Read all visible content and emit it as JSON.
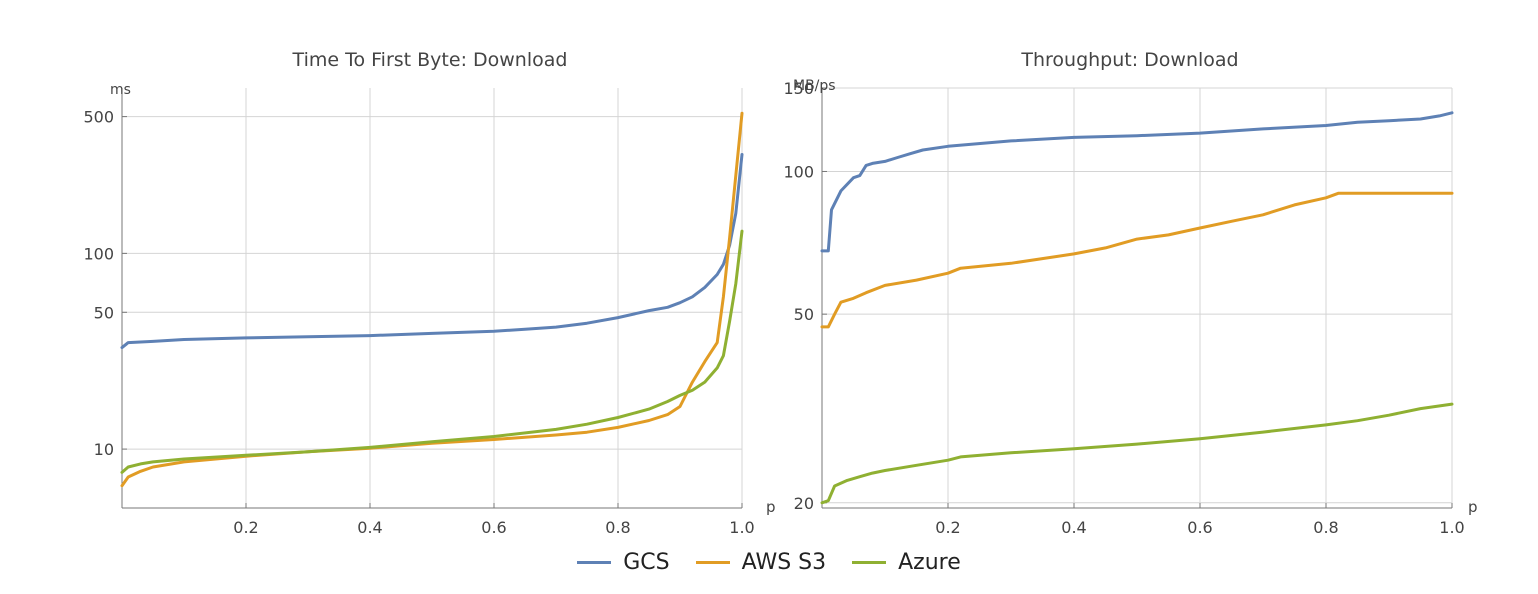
{
  "chart_data": [
    {
      "type": "line",
      "title": "Time To First Byte:  Download",
      "ylabel": "ms",
      "xlabel": "p",
      "yscale": "log",
      "xlim": [
        0,
        1
      ],
      "ylim": [
        5,
        700
      ],
      "grid": true,
      "x_ticks": [
        0.2,
        0.4,
        0.6,
        0.8,
        1.0
      ],
      "x_tick_labels": [
        "0.2",
        "0.4",
        "0.6",
        "0.8",
        "1.0"
      ],
      "y_ticks": [
        10,
        50,
        100,
        500
      ],
      "y_tick_labels": [
        "10",
        "50",
        "100",
        "500"
      ],
      "series": [
        {
          "name": "GCS",
          "x": [
            0,
            0.01,
            0.05,
            0.1,
            0.2,
            0.3,
            0.4,
            0.5,
            0.6,
            0.65,
            0.7,
            0.75,
            0.8,
            0.85,
            0.88,
            0.9,
            0.92,
            0.94,
            0.96,
            0.97,
            0.98,
            0.99,
            1.0
          ],
          "y": [
            33,
            35,
            35.5,
            36.3,
            37,
            37.5,
            38,
            39,
            40,
            41,
            42,
            44,
            47,
            51,
            53,
            56,
            60,
            67,
            78,
            88,
            110,
            160,
            320
          ]
        },
        {
          "name": "AWS S3",
          "x": [
            0,
            0.01,
            0.03,
            0.05,
            0.1,
            0.2,
            0.3,
            0.4,
            0.5,
            0.6,
            0.7,
            0.75,
            0.8,
            0.85,
            0.88,
            0.9,
            0.92,
            0.94,
            0.96,
            0.97,
            0.98,
            0.99,
            1.0
          ],
          "y": [
            6.5,
            7.2,
            7.7,
            8.1,
            8.6,
            9.2,
            9.7,
            10.1,
            10.7,
            11.2,
            11.8,
            12.2,
            12.9,
            14,
            15,
            16.5,
            22,
            28,
            35,
            60,
            120,
            250,
            520
          ]
        },
        {
          "name": "Azure",
          "x": [
            0,
            0.01,
            0.03,
            0.05,
            0.1,
            0.2,
            0.3,
            0.4,
            0.5,
            0.6,
            0.7,
            0.75,
            0.8,
            0.85,
            0.88,
            0.9,
            0.92,
            0.94,
            0.96,
            0.97,
            0.98,
            0.99,
            1.0
          ],
          "y": [
            7.6,
            8.1,
            8.4,
            8.6,
            8.9,
            9.3,
            9.7,
            10.2,
            10.9,
            11.6,
            12.6,
            13.4,
            14.5,
            16,
            17.5,
            18.8,
            20,
            22,
            26,
            30,
            45,
            70,
            130
          ]
        }
      ]
    },
    {
      "type": "line",
      "title": "Throughput: Download",
      "ylabel": "MB/ps",
      "xlabel": "p",
      "yscale": "log",
      "xlim": [
        0,
        1
      ],
      "ylim": [
        19.5,
        150
      ],
      "grid": true,
      "x_ticks": [
        0.2,
        0.4,
        0.6,
        0.8,
        1.0
      ],
      "x_tick_labels": [
        "0.2",
        "0.4",
        "0.6",
        "0.8",
        "1.0"
      ],
      "y_ticks": [
        20,
        50,
        100,
        150
      ],
      "y_tick_labels": [
        "20",
        "50",
        "100",
        "150"
      ],
      "series": [
        {
          "name": "GCS",
          "x": [
            0,
            0.01,
            0.015,
            0.03,
            0.05,
            0.06,
            0.07,
            0.08,
            0.1,
            0.12,
            0.14,
            0.16,
            0.2,
            0.3,
            0.4,
            0.5,
            0.6,
            0.7,
            0.8,
            0.85,
            0.9,
            0.95,
            0.98,
            1.0
          ],
          "y": [
            68,
            68,
            83,
            91,
            97,
            98,
            103,
            104,
            105,
            107,
            109,
            111,
            113,
            116,
            118,
            119,
            120.5,
            123,
            125,
            127,
            128,
            129,
            131,
            133
          ]
        },
        {
          "name": "AWS S3",
          "x": [
            0,
            0.01,
            0.02,
            0.03,
            0.05,
            0.07,
            0.1,
            0.15,
            0.2,
            0.22,
            0.3,
            0.4,
            0.45,
            0.5,
            0.55,
            0.6,
            0.65,
            0.7,
            0.75,
            0.8,
            0.82,
            0.9,
            1.0
          ],
          "y": [
            47,
            47,
            50,
            53,
            54,
            55.5,
            57.5,
            59,
            61,
            62.5,
            64,
            67,
            69,
            72,
            73.5,
            76,
            78.5,
            81,
            85,
            88,
            90,
            90,
            90
          ]
        },
        {
          "name": "Azure",
          "x": [
            0,
            0.01,
            0.02,
            0.04,
            0.06,
            0.08,
            0.1,
            0.15,
            0.2,
            0.22,
            0.3,
            0.4,
            0.5,
            0.6,
            0.7,
            0.8,
            0.85,
            0.9,
            0.95,
            1.0
          ],
          "y": [
            20,
            20.2,
            21.7,
            22.3,
            22.7,
            23.1,
            23.4,
            24,
            24.6,
            25,
            25.5,
            26,
            26.6,
            27.3,
            28.2,
            29.2,
            29.8,
            30.6,
            31.6,
            32.3
          ]
        }
      ]
    }
  ],
  "legend": {
    "items": [
      {
        "label": "GCS",
        "color": "#5e81b5"
      },
      {
        "label": "AWS S3",
        "color": "#e19c24"
      },
      {
        "label": "Azure",
        "color": "#8fb032"
      }
    ]
  }
}
